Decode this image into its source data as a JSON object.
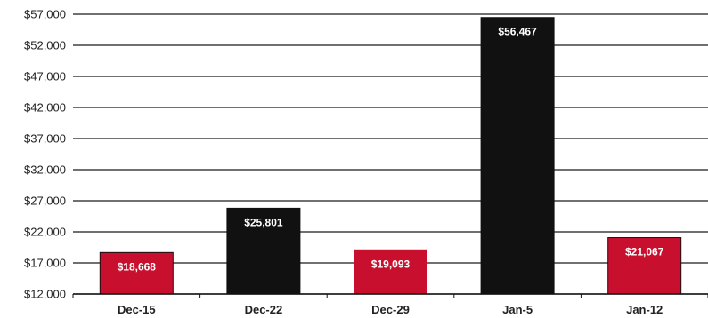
{
  "chart_data": {
    "type": "bar",
    "categories": [
      "Dec-15",
      "Dec-22",
      "Dec-29",
      "Jan-5",
      "Jan-12"
    ],
    "values": [
      18668,
      25801,
      19093,
      56467,
      21067
    ],
    "value_labels": [
      "$18,668",
      "$25,801",
      "$19,093",
      "$56,467",
      "$21,067"
    ],
    "bar_colors": [
      "#c8102e",
      "#111111",
      "#c8102e",
      "#111111",
      "#c8102e"
    ],
    "ylim": [
      12000,
      57000
    ],
    "yticks": [
      12000,
      17000,
      22000,
      27000,
      32000,
      37000,
      42000,
      47000,
      52000,
      57000
    ],
    "ytick_labels": [
      "$12,000",
      "$17,000",
      "$22,000",
      "$27,000",
      "$32,000",
      "$37,000",
      "$42,000",
      "$47,000",
      "$52,000",
      "$57,000"
    ],
    "grid": true,
    "title": "",
    "xlabel": "",
    "ylabel": ""
  }
}
